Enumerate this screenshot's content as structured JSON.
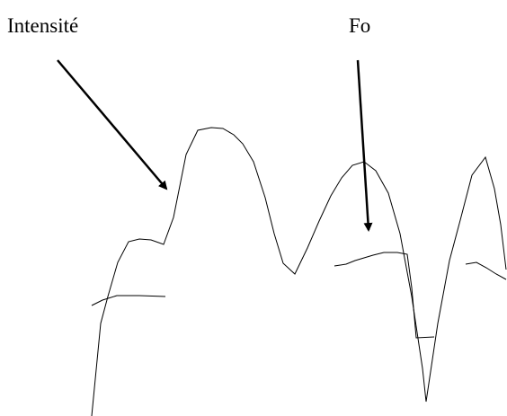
{
  "labels": {
    "intensity": "Intensité",
    "fo": "Fo"
  },
  "colors": {
    "line": "#000000",
    "background": "#ffffff"
  }
}
